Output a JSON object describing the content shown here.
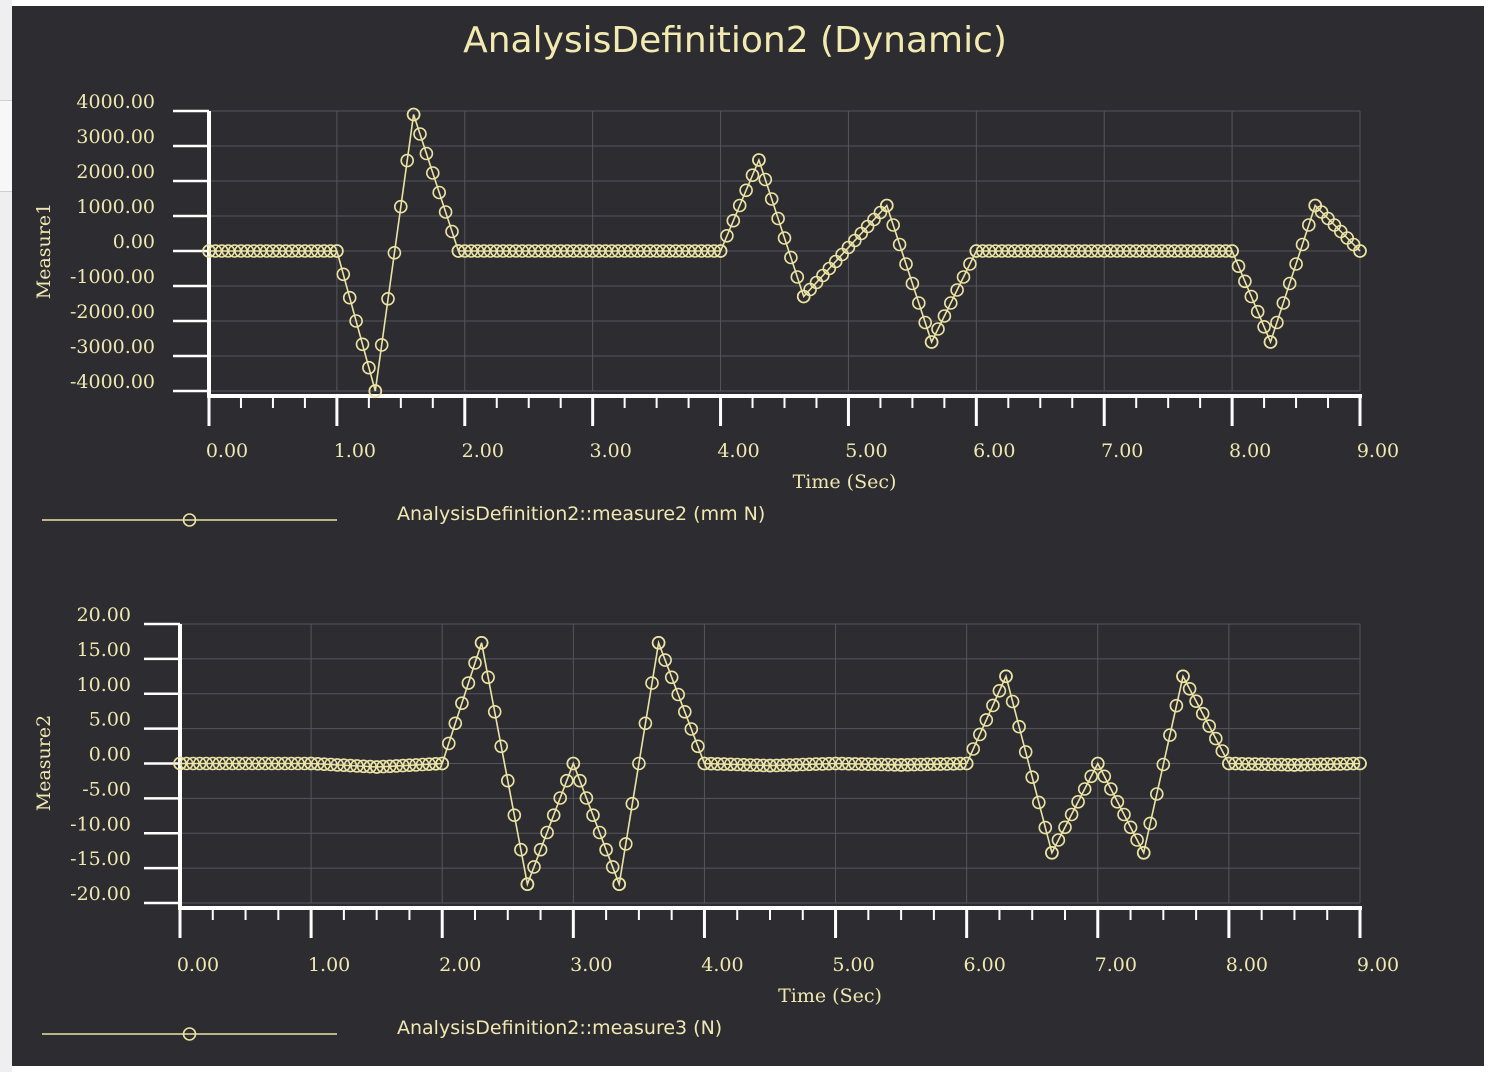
{
  "window": {
    "title": "AnalysisDefinition2 (Dynamic)"
  },
  "colors": {
    "background": "#2c2c31",
    "series": "#ebe3a3",
    "axis": "#ffffff",
    "grid": "#55555c",
    "text": "#f0e8b0"
  },
  "chart_data": [
    {
      "type": "line",
      "title": "AnalysisDefinition2 (Dynamic)",
      "xlabel": "Time (Sec)",
      "ylabel": "Measure1",
      "xlim": [
        0,
        9
      ],
      "ylim": [
        -4000,
        4000
      ],
      "xticks": [
        "0.00",
        "1.00",
        "2.00",
        "3.00",
        "4.00",
        "5.00",
        "6.00",
        "7.00",
        "8.00",
        "9.00"
      ],
      "yticks": [
        "4000.00",
        "3000.00",
        "2000.00",
        "1000.00",
        "0.00",
        "-1000.00",
        "-2000.00",
        "-3000.00",
        "-4000.00"
      ],
      "grid": true,
      "legend": "bottom-left",
      "series": [
        {
          "name": "AnalysisDefinition2::measure2 (mm N)",
          "marker": "circle",
          "points": [
            [
              0,
              0
            ],
            [
              1,
              0
            ],
            [
              1.3,
              -4000
            ],
            [
              1.6,
              3900
            ],
            [
              1.95,
              0
            ],
            [
              4,
              0
            ],
            [
              4.3,
              2600
            ],
            [
              4.65,
              -1300
            ],
            [
              5.3,
              1300
            ],
            [
              5.65,
              -2600
            ],
            [
              6,
              0
            ],
            [
              8,
              0
            ],
            [
              8.3,
              -2600
            ],
            [
              8.65,
              1300
            ],
            [
              9,
              0
            ]
          ]
        }
      ]
    },
    {
      "type": "line",
      "xlabel": "Time (Sec)",
      "ylabel": "Measure2",
      "xlim": [
        0,
        9
      ],
      "ylim": [
        -20,
        20
      ],
      "xticks": [
        "0.00",
        "1.00",
        "2.00",
        "3.00",
        "4.00",
        "5.00",
        "6.00",
        "7.00",
        "8.00",
        "9.00"
      ],
      "yticks": [
        "20.00",
        "15.00",
        "10.00",
        "5.00",
        "0.00",
        "-5.00",
        "-10.00",
        "-15.00",
        "-20.00"
      ],
      "grid": true,
      "legend": "bottom-left",
      "series": [
        {
          "name": "AnalysisDefinition2::measure3 (N)",
          "marker": "circle",
          "points": [
            [
              0,
              0
            ],
            [
              1,
              0
            ],
            [
              1.5,
              -0.5
            ],
            [
              2,
              0
            ],
            [
              2.3,
              17.3
            ],
            [
              2.65,
              -17.3
            ],
            [
              3,
              0
            ],
            [
              3.35,
              -17.3
            ],
            [
              3.65,
              17.3
            ],
            [
              4,
              0
            ],
            [
              4.5,
              -0.3
            ],
            [
              5,
              0
            ],
            [
              5.5,
              -0.2
            ],
            [
              6,
              0
            ],
            [
              6.3,
              12.5
            ],
            [
              6.65,
              -12.8
            ],
            [
              7,
              0
            ],
            [
              7.35,
              -12.8
            ],
            [
              7.65,
              12.5
            ],
            [
              8,
              0
            ],
            [
              8.5,
              -0.2
            ],
            [
              9,
              0
            ]
          ]
        }
      ]
    }
  ]
}
